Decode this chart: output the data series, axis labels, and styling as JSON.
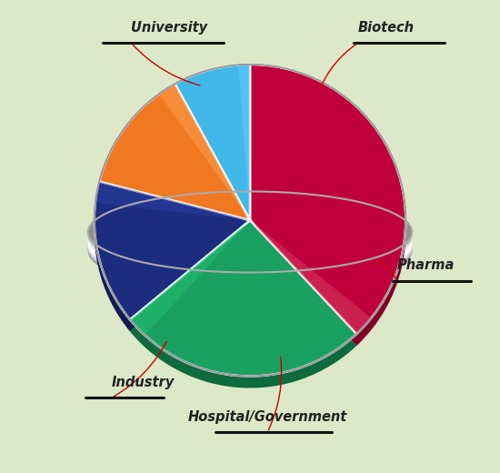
{
  "labels": [
    "University",
    "Biotech",
    "Pharma",
    "Hospital/Government",
    "Industry"
  ],
  "sizes": [
    38,
    26,
    15,
    13,
    8
  ],
  "colors": [
    "#c0003c",
    "#1aA060",
    "#1c2d80",
    "#f07820",
    "#40b8e8"
  ],
  "dark_colors": [
    "#800028",
    "#0e6b3e",
    "#111e55",
    "#a05010",
    "#1a80aa"
  ],
  "light_colors": [
    "#d84060",
    "#22c070",
    "#2a3fa0",
    "#f8a050",
    "#60ceff"
  ],
  "startangle": 90,
  "bg_color": "#dce8c8",
  "label_font_size": 10.5,
  "label_color": "#222222",
  "line_color": "#cc0000",
  "bracket_color": "#111111"
}
